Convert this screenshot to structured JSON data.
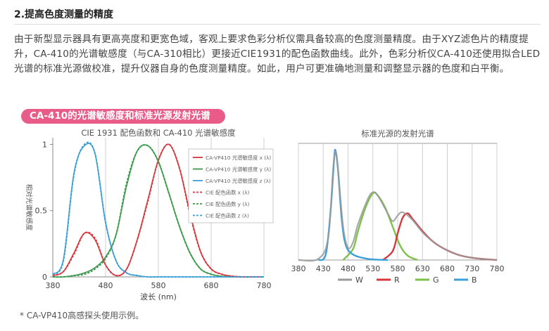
{
  "heading": "2.提高色度测量的精度",
  "paragraph": "由于新型显示器具有更高亮度和更宽色域，客观上要求色彩分析仪需具备较高的色度测量精度。由于XYZ滤色片的精度提升，CA-410的光谱敏感度（与CA-310相比）更接近CIE1931的配色函数曲线。此外，色彩分析仪CA-410还使用拟合LED光谱的标准光源做校准，提升仪器自身的色度测量精度。如此，用户可更准确地测量和调整显示器的色度和白平衡。",
  "banner": "CA-410的光谱敏感度和标准光源发射光谱",
  "footnote": "* CA-VP410高感探头使用示例。",
  "chart_data": [
    {
      "type": "line",
      "title": "CIE 1931 配色函数和 CA-410 光谱敏感度",
      "xlabel": "波长 (nm)",
      "ylabel": "相对光谱敏感度",
      "xlim": [
        380,
        780
      ],
      "ylim": [
        0,
        1.05
      ],
      "x_ticks": [
        "380",
        "480",
        "580",
        "680",
        "780"
      ],
      "y_ticks": [
        "0",
        "0.5",
        "1"
      ],
      "grid": "vertical",
      "legend_position": "top-right",
      "x": [
        380,
        400,
        420,
        440,
        460,
        480,
        500,
        520,
        540,
        560,
        580,
        600,
        620,
        640,
        660,
        680,
        700,
        720,
        740,
        760,
        780
      ],
      "series": [
        {
          "name": "CA-VP410 光谱敏感度 x (λ)",
          "color": "#d9363e",
          "dash": "solid",
          "values": [
            0.01,
            0.04,
            0.18,
            0.33,
            0.28,
            0.09,
            0.01,
            0.06,
            0.28,
            0.58,
            0.88,
            1.0,
            0.82,
            0.48,
            0.19,
            0.06,
            0.02,
            0.005,
            0.0,
            0.0,
            0.0
          ]
        },
        {
          "name": "CA-VP410 光谱敏感度 y (λ)",
          "color": "#3a9a4a",
          "dash": "solid",
          "values": [
            0.0,
            0.0,
            0.01,
            0.03,
            0.07,
            0.15,
            0.32,
            0.69,
            0.95,
            0.99,
            0.87,
            0.63,
            0.38,
            0.18,
            0.06,
            0.02,
            0.004,
            0.0,
            0.0,
            0.0,
            0.0
          ]
        },
        {
          "name": "CA-VP410 光谱敏感度 z (λ)",
          "color": "#3b9fd8",
          "dash": "solid",
          "values": [
            0.02,
            0.13,
            0.78,
            0.99,
            0.93,
            0.41,
            0.12,
            0.03,
            0.01,
            0.0,
            0.0,
            0.0,
            0.0,
            0.0,
            0.0,
            0.0,
            0.0,
            0.0,
            0.0,
            0.0,
            0.0
          ]
        },
        {
          "name": "CIE 配色函数 x (λ)",
          "color": "#d9363e",
          "dash": "dashed",
          "values": [
            0.01,
            0.04,
            0.17,
            0.33,
            0.29,
            0.09,
            0.01,
            0.06,
            0.28,
            0.57,
            0.88,
            1.0,
            0.82,
            0.47,
            0.19,
            0.06,
            0.02,
            0.005,
            0.0,
            0.0,
            0.0
          ]
        },
        {
          "name": "CIE 配色函数 y (λ)",
          "color": "#3a9a4a",
          "dash": "dashed",
          "values": [
            0.0,
            0.0,
            0.01,
            0.02,
            0.06,
            0.14,
            0.32,
            0.71,
            0.95,
            0.99,
            0.87,
            0.63,
            0.38,
            0.18,
            0.06,
            0.02,
            0.004,
            0.0,
            0.0,
            0.0,
            0.0
          ]
        },
        {
          "name": "CIE 配色函数 z (λ)",
          "color": "#3b9fd8",
          "dash": "dashed",
          "values": [
            0.02,
            0.12,
            0.77,
            1.0,
            0.93,
            0.41,
            0.12,
            0.03,
            0.01,
            0.0,
            0.0,
            0.0,
            0.0,
            0.0,
            0.0,
            0.0,
            0.0,
            0.0,
            0.0,
            0.0,
            0.0
          ]
        }
      ]
    },
    {
      "type": "line",
      "title": "标准光源的发射光谱",
      "xlim": [
        380,
        780
      ],
      "ylim": [
        0,
        1.05
      ],
      "x_ticks": [
        "380",
        "430",
        "480",
        "530",
        "580",
        "630",
        "680",
        "730",
        "780"
      ],
      "grid": "vertical",
      "legend_position": "bottom",
      "series": [
        {
          "name": "W",
          "color": "#9a9a9a",
          "points": [
            [
              380,
              0.0
            ],
            [
              420,
              0.01
            ],
            [
              440,
              0.2
            ],
            [
              450,
              0.82
            ],
            [
              455,
              0.98
            ],
            [
              460,
              0.8
            ],
            [
              470,
              0.3
            ],
            [
              480,
              0.11
            ],
            [
              490,
              0.16
            ],
            [
              500,
              0.32
            ],
            [
              520,
              0.55
            ],
            [
              530,
              0.61
            ],
            [
              540,
              0.58
            ],
            [
              560,
              0.42
            ],
            [
              570,
              0.35
            ],
            [
              580,
              0.4
            ],
            [
              590,
              0.43
            ],
            [
              610,
              0.36
            ],
            [
              630,
              0.25
            ],
            [
              650,
              0.17
            ],
            [
              670,
              0.11
            ],
            [
              700,
              0.05
            ],
            [
              730,
              0.02
            ],
            [
              780,
              0.0
            ]
          ]
        },
        {
          "name": "R",
          "color": "#d9363e",
          "points": [
            [
              550,
              0.0
            ],
            [
              570,
              0.08
            ],
            [
              580,
              0.24
            ],
            [
              590,
              0.38
            ],
            [
              600,
              0.42
            ],
            [
              610,
              0.37
            ],
            [
              630,
              0.26
            ],
            [
              650,
              0.17
            ],
            [
              670,
              0.11
            ],
            [
              700,
              0.05
            ],
            [
              730,
              0.02
            ],
            [
              780,
              0.0
            ]
          ]
        },
        {
          "name": "G",
          "color": "#7dc24a",
          "points": [
            [
              470,
              0.0
            ],
            [
              490,
              0.1
            ],
            [
              500,
              0.26
            ],
            [
              515,
              0.47
            ],
            [
              530,
              0.6
            ],
            [
              540,
              0.58
            ],
            [
              555,
              0.47
            ],
            [
              570,
              0.3
            ],
            [
              585,
              0.13
            ],
            [
              600,
              0.04
            ],
            [
              620,
              0.0
            ]
          ]
        },
        {
          "name": "B",
          "color": "#3b9fd8",
          "points": [
            [
              420,
              0.0
            ],
            [
              435,
              0.05
            ],
            [
              445,
              0.45
            ],
            [
              452,
              0.92
            ],
            [
              455,
              0.98
            ],
            [
              460,
              0.8
            ],
            [
              467,
              0.38
            ],
            [
              475,
              0.14
            ],
            [
              490,
              0.05
            ],
            [
              520,
              0.01
            ],
            [
              560,
              0.0
            ]
          ]
        }
      ]
    }
  ]
}
